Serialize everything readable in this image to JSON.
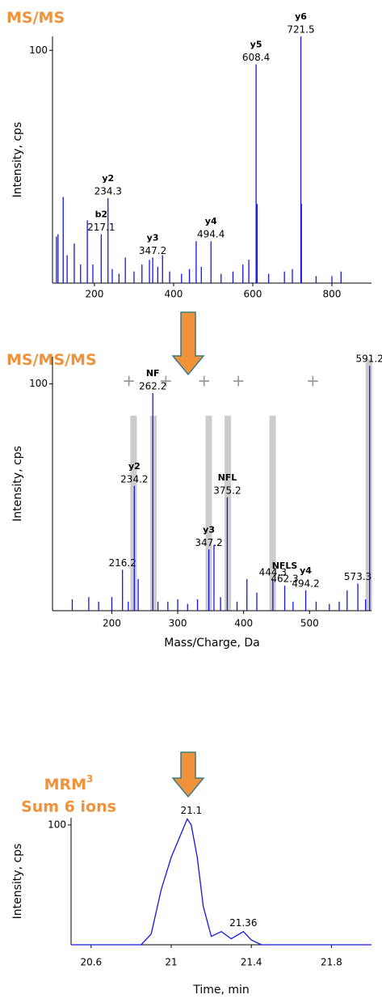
{
  "chart_data": [
    {
      "type": "stick",
      "title": "MS/MS",
      "y_label": "Intensity, cps",
      "color": "#1414e6",
      "label_color": "#000000",
      "xlim": [
        94,
        900
      ],
      "ylim": [
        0,
        106
      ],
      "xticks": [
        200,
        400,
        600,
        800
      ],
      "yticks": [
        100
      ],
      "x": [
        104,
        108,
        121,
        131,
        149,
        165,
        182,
        196,
        217.1,
        234.3,
        245,
        262,
        278,
        300,
        320,
        339,
        347.2,
        360,
        372,
        390,
        420,
        440,
        457,
        470,
        494.4,
        520,
        550,
        575,
        590,
        608.4,
        611,
        640,
        680,
        700,
        721.5,
        723,
        760,
        800,
        823
      ],
      "values": [
        20,
        21,
        37,
        12,
        17,
        8,
        27,
        8,
        21,
        36.5,
        6,
        4,
        11,
        5,
        8,
        10,
        11,
        7,
        12,
        5,
        4,
        6,
        18,
        7,
        18,
        4,
        5,
        8,
        10,
        94,
        34,
        4,
        5,
        6,
        106,
        34,
        3,
        3,
        5
      ],
      "x_labels": [
        null,
        null,
        null,
        null,
        null,
        null,
        null,
        null,
        217.1,
        234.3,
        null,
        null,
        null,
        null,
        null,
        null,
        347.2,
        null,
        null,
        null,
        null,
        null,
        null,
        null,
        494.4,
        null,
        null,
        null,
        null,
        608.4,
        null,
        null,
        null,
        null,
        721.5,
        null,
        null,
        null,
        null
      ],
      "ions": [
        null,
        null,
        null,
        null,
        null,
        null,
        null,
        null,
        {
          "text": "b2",
          "color": "#c0185a"
        },
        {
          "text": "y2",
          "color": "#6aaa2a"
        },
        null,
        null,
        null,
        null,
        null,
        null,
        {
          "text": "y3",
          "color": "#6aaa2a"
        },
        null,
        null,
        null,
        null,
        null,
        null,
        null,
        {
          "text": "y4",
          "color": "#6aaa2a"
        },
        null,
        null,
        null,
        null,
        {
          "text": "y5",
          "color": "#6aaa2a"
        },
        null,
        null,
        null,
        null,
        {
          "text": "y6",
          "color": "#6aaa2a"
        },
        null,
        null,
        null,
        null
      ]
    },
    {
      "type": "stick",
      "title": "MS/MS/MS",
      "y_label": "Intensity, cps",
      "x_label": "Mass/Charge, Da",
      "color": "#1414e6",
      "label_color": "#555555",
      "xlim": [
        110,
        594
      ],
      "ylim": [
        0,
        112
      ],
      "xticks": [
        200,
        300,
        400,
        500
      ],
      "yticks": [
        100
      ],
      "highlight_color": "#cccccc",
      "highlight_x": [
        233,
        263,
        347,
        376,
        444,
        590
      ],
      "highlight_top": [
        86,
        86,
        86,
        86,
        86,
        111
      ],
      "plus_marker": "+",
      "plus_x": [
        226,
        282,
        340,
        392,
        505
      ],
      "plus_y": 101,
      "x": [
        140,
        165,
        180,
        200,
        216.2,
        225,
        234.2,
        240,
        262.2,
        270,
        285,
        300,
        315,
        330,
        347.2,
        355,
        365,
        375.2,
        390,
        405,
        420,
        444.3,
        462.3,
        475,
        494.2,
        510,
        530,
        545,
        557,
        573.3,
        585,
        591.2
      ],
      "values": [
        5,
        6,
        4,
        6,
        18,
        4,
        55,
        14,
        96,
        4,
        4,
        5,
        3,
        5,
        27,
        29,
        6,
        50,
        4,
        14,
        8,
        14,
        11,
        4,
        9,
        4,
        3,
        4,
        9,
        12,
        5,
        108
      ],
      "x_labels": [
        null,
        null,
        null,
        null,
        216.2,
        null,
        234.2,
        null,
        262.2,
        null,
        null,
        null,
        null,
        null,
        347.2,
        null,
        null,
        375.2,
        null,
        null,
        null,
        444.3,
        462.3,
        null,
        494.2,
        null,
        null,
        null,
        null,
        573.3,
        null,
        591.2
      ],
      "ions": [
        null,
        null,
        null,
        null,
        null,
        null,
        {
          "text": "y2",
          "color": "#6aaa2a"
        },
        null,
        {
          "text": "NF",
          "color": "#c0185a"
        },
        null,
        null,
        null,
        null,
        null,
        {
          "text": "y3",
          "color": "#6aaa2a"
        },
        null,
        null,
        {
          "text": "NFL",
          "color": "#c0185a"
        },
        null,
        null,
        null,
        null,
        {
          "text": "NFLS",
          "color": "#c0185a"
        },
        null,
        {
          "text": "y4",
          "color": "#6aaa2a"
        },
        null,
        null,
        null,
        null,
        null,
        null,
        null
      ]
    },
    {
      "type": "line",
      "title": "MRM",
      "title_sup": "3",
      "subtitle": "Sum 6 ions",
      "y_label": "Intensity, cps",
      "x_label": "Time, min",
      "color": "#1414e6",
      "xlim": [
        20.5,
        22.0
      ],
      "ylim": [
        0,
        106
      ],
      "xticks": [
        20.6,
        21.0,
        21.4,
        21.8
      ],
      "yticks": [
        100
      ],
      "x": [
        20.5,
        20.85,
        20.9,
        20.95,
        21.0,
        21.05,
        21.08,
        21.1,
        21.13,
        21.16,
        21.2,
        21.25,
        21.3,
        21.36,
        21.4,
        21.45,
        22.0
      ],
      "values": [
        0,
        0,
        9,
        46,
        73,
        93,
        105,
        100,
        73,
        32,
        7,
        11,
        5,
        11,
        4,
        0,
        0
      ],
      "annotations": [
        {
          "x": 21.1,
          "y": 105
        },
        {
          "x": 21.36,
          "y": 11
        }
      ]
    }
  ]
}
